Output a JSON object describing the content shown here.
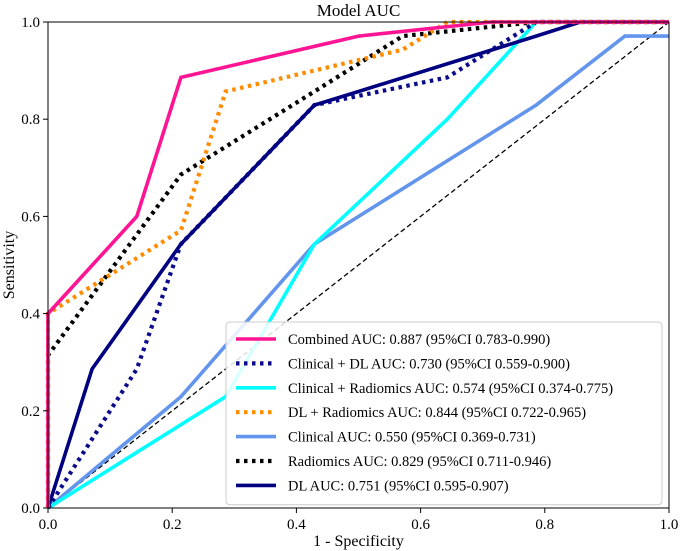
{
  "chart_data": {
    "type": "line",
    "title": "Model AUC",
    "xlabel": "1 - Specificity",
    "ylabel": "Sensitivity",
    "xlim": [
      0,
      1
    ],
    "ylim": [
      0,
      1
    ],
    "xticks": [
      "0.0",
      "0.2",
      "0.4",
      "0.6",
      "0.8",
      "1.0"
    ],
    "yticks": [
      "0.0",
      "0.2",
      "0.4",
      "0.6",
      "0.8",
      "1.0"
    ],
    "xtick_values": [
      0,
      0.2,
      0.4,
      0.6,
      0.8,
      1.0
    ],
    "ytick_values": [
      0,
      0.2,
      0.4,
      0.6,
      0.8,
      1.0
    ],
    "grid": false,
    "legend_position": "lower-right",
    "reference_line": {
      "name": "chance",
      "x": [
        0,
        1
      ],
      "y": [
        0,
        1
      ],
      "color": "#000000",
      "style": "dashed"
    },
    "series": [
      {
        "name": "Combined AUC: 0.887 (95%CI 0.783-0.990)",
        "color": "#ff1493",
        "style": "solid",
        "x": [
          0,
          0,
          0.143,
          0.214,
          0.5,
          0.714,
          0.857,
          1.0
        ],
        "y": [
          0,
          0.4,
          0.6,
          0.886,
          0.971,
          1.0,
          1.0,
          1.0
        ]
      },
      {
        "name": "Clinical + DL AUC: 0.730 (95%CI 0.559-0.900)",
        "color": "#0b0b8c",
        "style": "dotted",
        "x": [
          0,
          0.143,
          0.214,
          0.429,
          0.643,
          0.786,
          0.857,
          1.0
        ],
        "y": [
          0,
          0.286,
          0.543,
          0.829,
          0.886,
          1.0,
          1.0,
          1.0
        ]
      },
      {
        "name": "Clinical + Radiomics AUC: 0.574 (95%CI 0.374-0.775)",
        "color": "#00ffff",
        "style": "solid",
        "x": [
          0,
          0.286,
          0.429,
          0.643,
          0.786,
          1.0
        ],
        "y": [
          0,
          0.229,
          0.543,
          0.8,
          1.0,
          1.0
        ]
      },
      {
        "name": "DL + Radiomics AUC: 0.844 (95%CI 0.722-0.965)",
        "color": "#ff8c00",
        "style": "dotted",
        "x": [
          0,
          0,
          0.214,
          0.286,
          0.571,
          0.643,
          0.786,
          1.0
        ],
        "y": [
          0,
          0.4,
          0.571,
          0.857,
          0.943,
          1.0,
          1.0,
          1.0
        ]
      },
      {
        "name": "Clinical AUC: 0.550 (95%CI 0.369-0.731)",
        "color": "#6495ed",
        "style": "solid",
        "x": [
          0,
          0.214,
          0.429,
          0.786,
          0.929,
          1.0
        ],
        "y": [
          0,
          0.229,
          0.543,
          0.829,
          0.971,
          0.971
        ]
      },
      {
        "name": "Radiomics AUC: 0.829 (95%CI 0.711-0.946)",
        "color": "#000000",
        "style": "dotted",
        "x": [
          0,
          0,
          0.214,
          0.429,
          0.571,
          0.786,
          0.857,
          1.0
        ],
        "y": [
          0,
          0.314,
          0.686,
          0.857,
          0.971,
          1.0,
          1.0,
          1.0
        ]
      },
      {
        "name": "DL AUC: 0.751 (95%CI 0.595-0.907)",
        "color": "#000080",
        "style": "solid",
        "x": [
          0,
          0.071,
          0.214,
          0.429,
          0.5,
          0.786,
          0.857,
          1.0
        ],
        "y": [
          0,
          0.286,
          0.543,
          0.829,
          0.857,
          0.971,
          1.0,
          1.0
        ]
      }
    ]
  }
}
